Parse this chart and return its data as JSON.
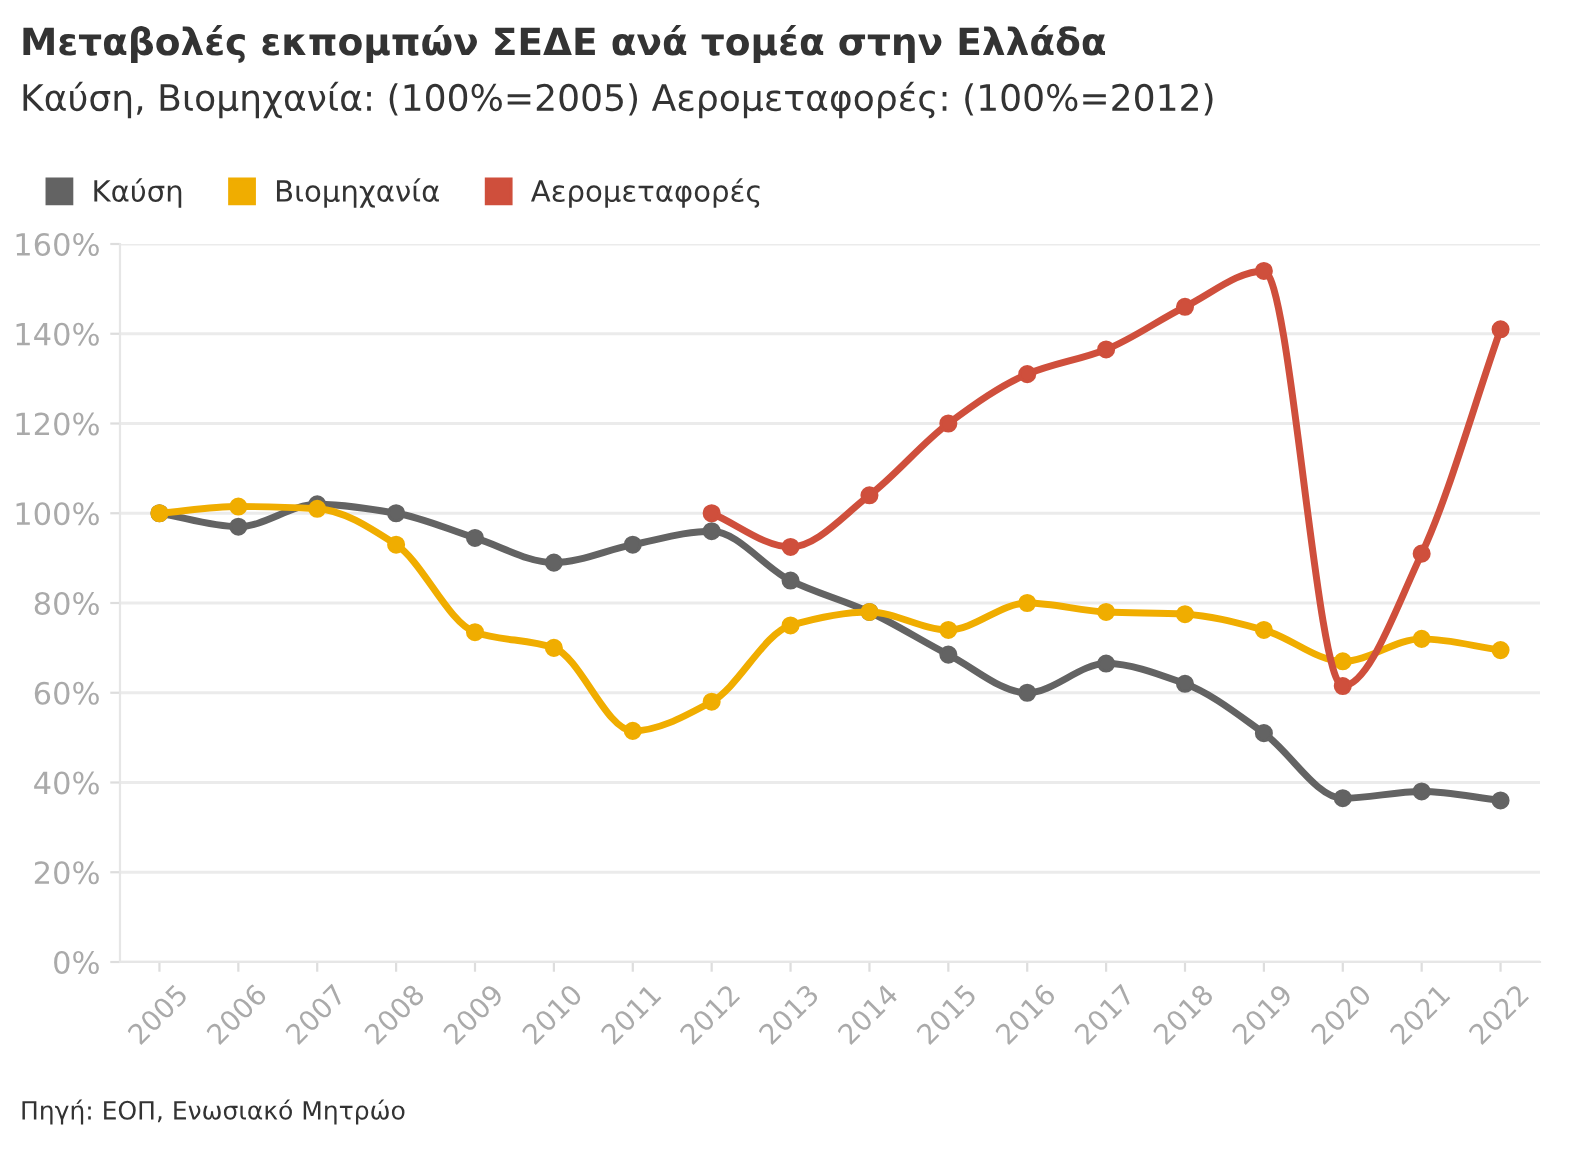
{
  "chart_data": {
    "type": "line",
    "title": "Μεταβολές εκπομπών ΣΕΔΕ ανά τομέα στην Ελλάδα",
    "subtitle": "Καύση, Βιομηχανία: (100%=2005) Αερομεταφορές: (100%=2012)",
    "categories": [
      "2005",
      "2006",
      "2007",
      "2008",
      "2009",
      "2010",
      "2011",
      "2012",
      "2013",
      "2014",
      "2015",
      "2016",
      "2017",
      "2018",
      "2019",
      "2020",
      "2021",
      "2022"
    ],
    "series": [
      {
        "name": "Καύση",
        "color": "#636363",
        "values": [
          100,
          97,
          102,
          100,
          94.5,
          89,
          93,
          96,
          85,
          78,
          68.5,
          60,
          66.5,
          62,
          51,
          36.5,
          38,
          36
        ]
      },
      {
        "name": "Βιομηχανία",
        "color": "#f0ad00",
        "values": [
          100,
          101.5,
          101,
          93,
          73.5,
          70,
          51.5,
          58,
          75,
          78,
          74,
          80,
          78,
          77.5,
          74,
          67,
          72,
          69.5
        ]
      },
      {
        "name": "Αερομεταφορές",
        "color": "#cf4f3c",
        "values": [
          null,
          null,
          null,
          null,
          null,
          null,
          null,
          100,
          92.5,
          104,
          120,
          131,
          136.5,
          146,
          154,
          61.5,
          91,
          141
        ]
      }
    ],
    "ylim": [
      0,
      160
    ],
    "yticks": [
      {
        "value": 0,
        "label": "0%"
      },
      {
        "value": 20,
        "label": "20%"
      },
      {
        "value": 40,
        "label": "40%"
      },
      {
        "value": 60,
        "label": "60%"
      },
      {
        "value": 80,
        "label": "80%"
      },
      {
        "value": 100,
        "label": "100%"
      },
      {
        "value": 120,
        "label": "120%"
      },
      {
        "value": 140,
        "label": "140%"
      },
      {
        "value": 160,
        "label": "160%"
      }
    ],
    "grid": "y",
    "legend": "top left",
    "marker": "circle",
    "line_style": "solid",
    "annotations": [
      "Πηγή: ΕΟΠ, Ενωσιακό Μητρώο"
    ]
  }
}
